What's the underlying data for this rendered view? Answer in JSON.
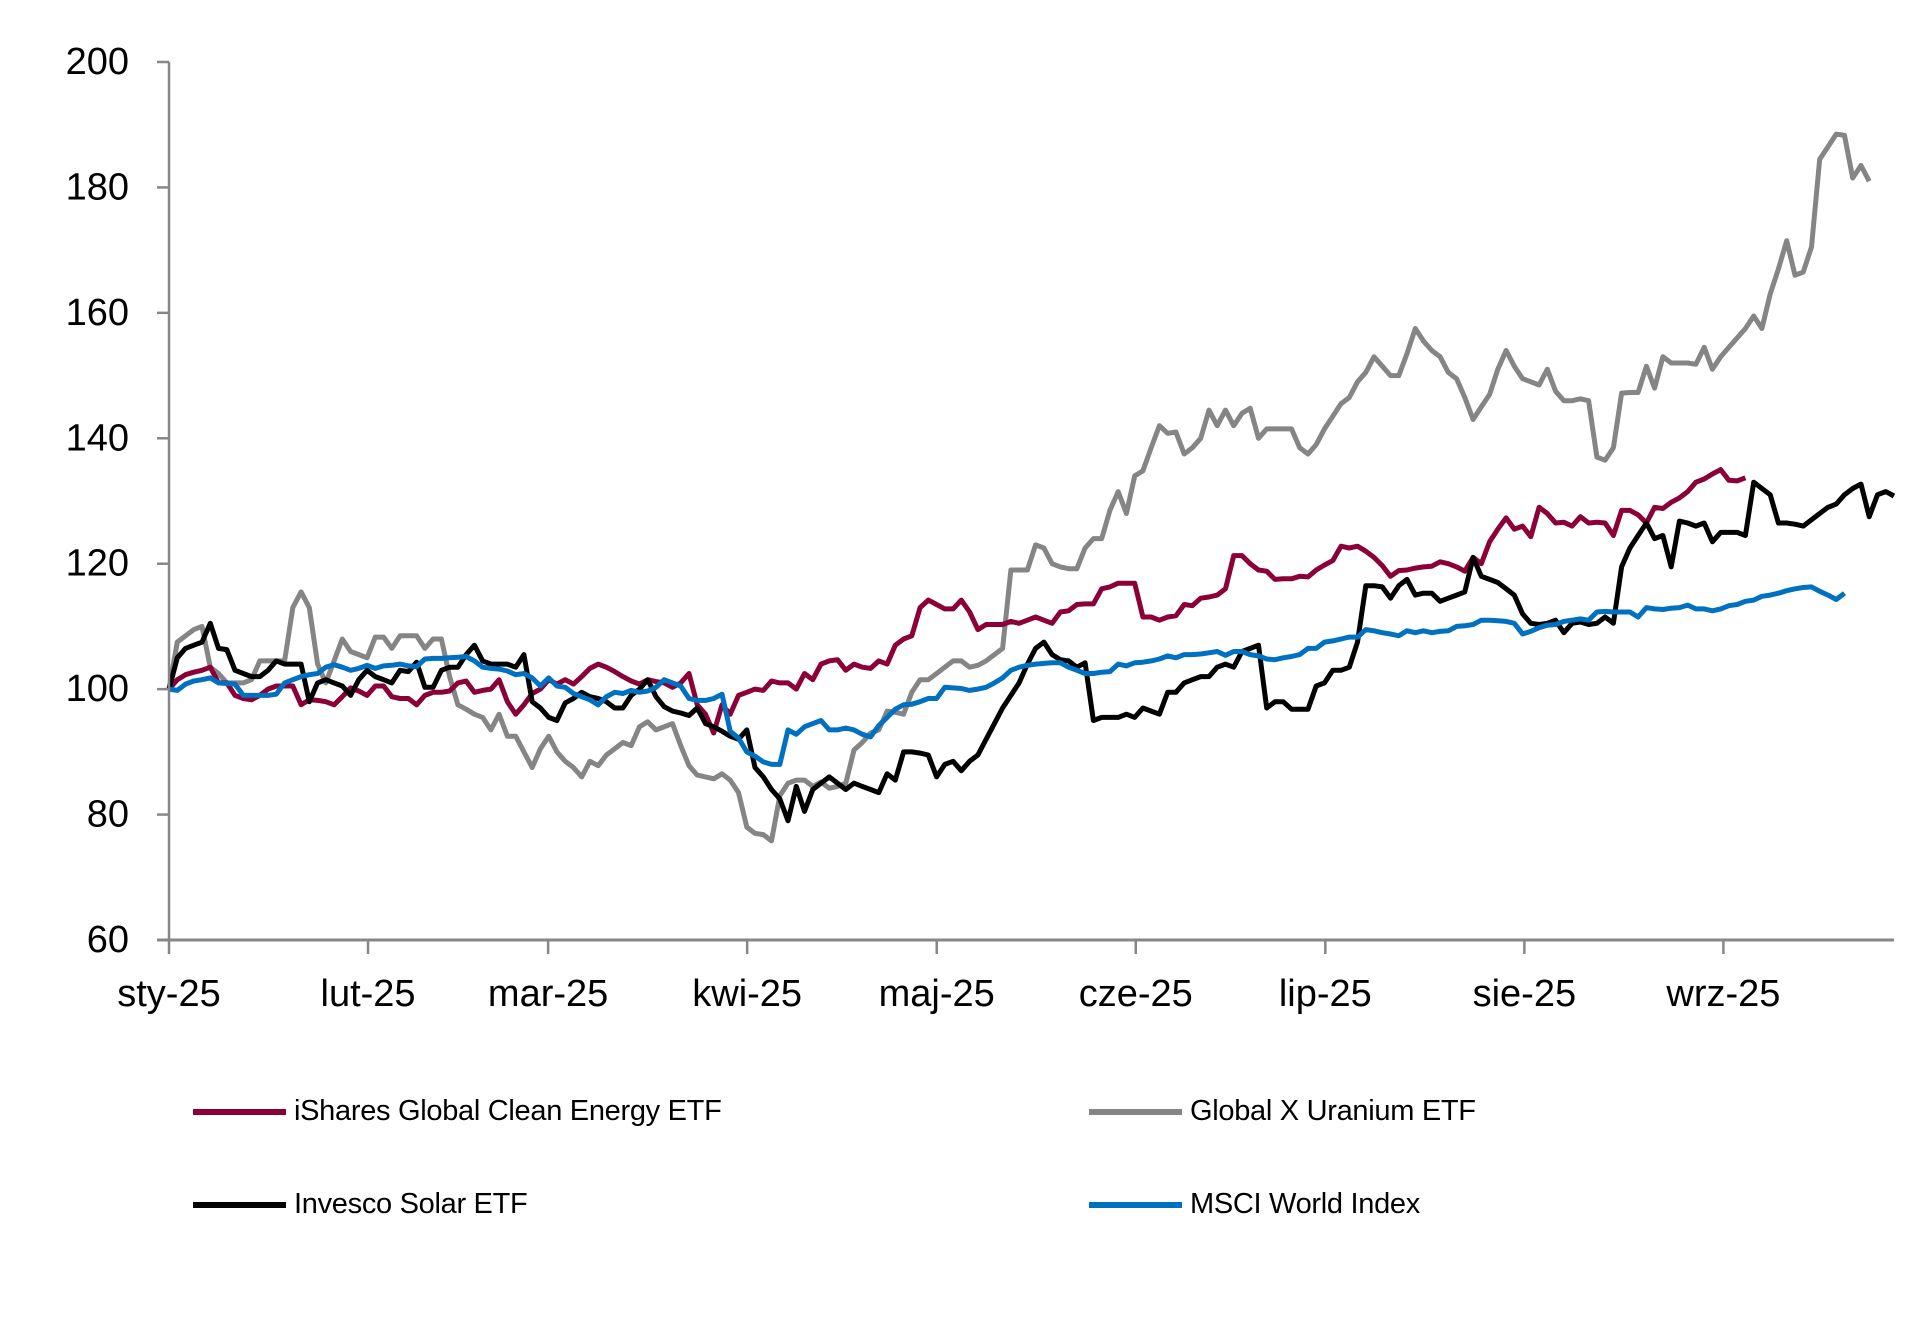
{
  "chart_data": {
    "type": "line",
    "title": "",
    "xlabel": "",
    "ylabel": "",
    "ylim": [
      60,
      200
    ],
    "yticks": [
      "60",
      "80",
      "100",
      "120",
      "140",
      "160",
      "180",
      "200"
    ],
    "ytick_values": [
      60,
      80,
      100,
      120,
      140,
      160,
      180,
      200
    ],
    "x_tick_labels": [
      "sty-25",
      "lut-25",
      "mar-25",
      "kwi-25",
      "maj-25",
      "cze-25",
      "lip-25",
      "sie-25",
      "wrz-25"
    ],
    "x_tick_positions": [
      0,
      21,
      40,
      61,
      81,
      102,
      122,
      143,
      164
    ],
    "x_range": [
      0,
      182
    ],
    "grid": false,
    "legend_position": "bottom",
    "series": [
      {
        "name": "iShares Global Clean Energy ETF",
        "color": "#8B0037",
        "values": [
          100,
          101.5,
          102.3,
          102.7,
          103,
          103.5,
          101,
          101,
          99,
          98.5,
          98.3,
          99,
          100,
          100.5,
          100.5,
          100.5,
          97.5,
          98.3,
          98.2,
          98,
          97.5,
          98.8,
          100.2,
          99.7,
          99,
          100.5,
          100.5,
          98.8,
          98.5,
          98.5,
          97.5,
          99,
          99.5,
          99.5,
          99.7,
          101,
          101.3,
          99.5,
          99.8,
          100,
          101.5,
          98,
          96,
          97.5,
          99.3,
          100,
          101.5,
          100.8,
          101.5,
          100.8,
          102,
          103.3,
          104,
          103.5,
          102.8,
          102,
          101.3,
          100.8,
          101.5,
          101.2,
          101,
          100.3,
          101,
          102.5,
          97.5,
          96,
          93,
          97.5,
          96,
          99,
          99.5,
          100,
          99.8,
          101.3,
          101,
          101,
          100,
          102.5,
          101.5,
          104,
          104.5,
          104.7,
          103,
          104,
          103.5,
          103.3,
          104.5,
          104,
          107,
          108,
          108.5,
          113,
          114.2,
          113.5,
          112.8,
          112.8,
          114.2,
          112.3,
          109.5,
          110.3,
          110.3,
          110.3,
          110.8,
          110.5,
          111,
          111.5,
          111,
          110.5,
          112.3,
          112.5,
          113.5,
          113.6,
          113.6,
          116,
          116.3,
          116.9,
          116.9,
          116.9,
          111.5,
          111.5,
          111,
          111.5,
          111.7,
          113.5,
          113.3,
          114.5,
          114.7,
          115,
          116,
          121.3,
          121.3,
          120,
          119,
          118.8,
          117.5,
          117.6,
          117.6,
          118,
          117.9,
          119,
          119.8,
          120.5,
          122.8,
          122.5,
          122.8,
          122,
          121,
          119.7,
          118,
          118.9,
          119,
          119.3,
          119.5,
          119.6,
          120.3,
          120,
          119.5,
          118.8,
          121,
          120,
          123.5,
          125.5,
          127.3,
          125.5,
          126,
          124.3,
          129,
          128,
          126.5,
          126.6,
          126,
          127.5,
          126.5,
          126.6,
          126.5,
          124.5,
          128.5,
          128.5,
          127.8,
          126.5,
          129,
          128.8,
          129.8,
          130.5,
          131.5,
          133,
          133.5,
          134.3,
          135,
          133.3,
          133.2,
          133.7
        ]
      },
      {
        "name": "Global X Uranium ETF",
        "color": "#858585",
        "values": [
          100,
          107.5,
          108.5,
          109.5,
          110,
          103.5,
          102.5,
          101,
          101,
          101,
          101.5,
          104.5,
          104.5,
          104.5,
          104.5,
          113,
          115.5,
          113,
          104,
          101,
          104.5,
          108,
          106,
          105.5,
          105,
          108.3,
          108.3,
          106.5,
          108.5,
          108.5,
          108.5,
          106.5,
          108,
          108,
          102,
          97.5,
          96.8,
          96,
          95.5,
          93.5,
          96,
          92.5,
          92.5,
          90,
          87.5,
          90.5,
          92.5,
          90,
          88.5,
          87.5,
          86,
          88.5,
          87.8,
          89.5,
          90.5,
          91.5,
          91,
          94,
          94.8,
          93.5,
          94,
          94.5,
          91,
          87.8,
          86.3,
          86,
          85.7,
          86.5,
          85.5,
          83.5,
          78,
          77,
          76.8,
          75.8,
          83,
          85,
          85.5,
          85.5,
          84.5,
          85.2,
          84.2,
          84.5,
          85,
          90.3,
          91.5,
          93,
          93.5,
          96.5,
          96.3,
          96,
          99.5,
          101.5,
          101.5,
          102.5,
          103.5,
          104.5,
          104.5,
          103.5,
          103.8,
          104.5,
          105.5,
          106.5,
          119,
          119,
          119,
          123,
          122.5,
          120,
          119.5,
          119.2,
          119.2,
          122.5,
          124,
          124,
          128.5,
          131.5,
          128,
          134,
          134.8,
          138.5,
          142,
          140.8,
          141,
          137.5,
          138.5,
          140,
          144.5,
          142,
          144.5,
          142,
          144,
          144.8,
          140,
          141.5,
          141.5,
          141.5,
          141.5,
          138.5,
          137.5,
          139,
          141.5,
          143.5,
          145.5,
          146.5,
          149,
          150.5,
          153,
          151.5,
          150,
          150,
          153.5,
          157.5,
          155.5,
          154,
          153,
          150.5,
          149.5,
          146.5,
          143,
          145,
          147,
          151,
          154,
          151.5,
          149.5,
          149,
          148.5,
          151,
          147.5,
          146,
          146,
          146.3,
          146,
          137,
          136.5,
          138.5,
          147.2,
          147.3,
          147.3,
          151.5,
          148,
          153,
          152,
          152,
          152,
          151.8,
          154.5,
          151,
          153,
          154.5,
          156,
          157.5,
          159.5,
          157.5,
          163,
          167,
          171.5,
          166,
          166.5,
          170.5,
          184.5,
          186.5,
          188.5,
          188.3,
          181.5,
          183.5,
          181
        ]
      },
      {
        "name": "Invesco Solar ETF",
        "color": "#000000",
        "values": [
          100,
          105,
          106.5,
          107,
          107.5,
          110.5,
          106.5,
          106.3,
          103,
          102.5,
          102,
          102,
          103,
          104.5,
          104,
          104,
          104,
          98,
          101,
          101.5,
          101,
          100.5,
          99,
          101.5,
          103,
          102,
          101.5,
          101,
          103,
          102.8,
          104.3,
          100.3,
          100.3,
          103,
          103.5,
          103.5,
          105.5,
          107,
          104.5,
          104,
          104,
          104,
          103.5,
          105.5,
          98,
          97,
          95.5,
          95,
          97.8,
          98.5,
          99.5,
          98.8,
          98.5,
          98,
          97,
          97,
          99,
          100,
          101.5,
          98.8,
          97.2,
          96.5,
          96.2,
          95.8,
          97,
          94.5,
          94,
          93.3,
          92.5,
          92,
          93.5,
          87.5,
          86,
          84,
          82.5,
          79,
          84.5,
          80.5,
          84,
          85,
          86,
          85,
          84,
          85,
          84.5,
          84,
          83.5,
          86.5,
          85.5,
          90,
          90,
          89.8,
          89.5,
          86,
          88,
          88.5,
          87,
          88.5,
          89.5,
          92,
          94.5,
          97,
          99,
          101,
          104,
          106.5,
          107.5,
          105.5,
          104.7,
          104.5,
          103.5,
          104.2,
          95,
          95.5,
          95.5,
          95.5,
          96,
          95.5,
          97,
          96.5,
          96,
          99.5,
          99.5,
          101,
          101.5,
          102,
          102,
          103.5,
          104,
          103.5,
          106,
          106.5,
          107,
          97,
          98,
          98,
          96.8,
          96.8,
          96.8,
          100.5,
          101,
          103,
          103,
          103.5,
          107.5,
          116.5,
          116.5,
          116.3,
          114.5,
          116.5,
          117.5,
          115,
          115.3,
          115.3,
          114,
          114.5,
          115,
          115.5,
          121,
          118,
          117.5,
          117,
          116,
          115,
          112,
          110.5,
          110.3,
          110.5,
          111,
          109,
          110.5,
          110.7,
          110.3,
          110.5,
          111.5,
          110.5,
          119.5,
          122.5,
          124.5,
          126.5,
          124,
          124.5,
          119.5,
          126.8,
          126.5,
          126,
          126.5,
          123.5,
          125,
          125,
          125,
          124.5,
          133,
          132,
          131,
          126.5,
          126.5,
          126.3,
          126,
          127,
          128,
          129,
          129.5,
          131,
          132,
          132.7,
          127.5,
          131,
          131.5,
          130.8
        ]
      },
      {
        "name": "MSCI World Index",
        "color": "#0070C0",
        "values": [
          100,
          99.8,
          100.8,
          101.3,
          101.5,
          101.8,
          101,
          100.9,
          100.8,
          99,
          99,
          99,
          99,
          99.2,
          101,
          101.5,
          102,
          102.3,
          102.5,
          103.5,
          103.9,
          103.5,
          103,
          103.3,
          103.8,
          103.3,
          103.7,
          103.8,
          104,
          103.7,
          103.6,
          104.8,
          104.9,
          104.9,
          105,
          105.1,
          105.2,
          104.5,
          103.5,
          103.3,
          103.2,
          102.9,
          102.3,
          102.5,
          101.8,
          100.5,
          101.8,
          100.5,
          100.3,
          99.3,
          98.8,
          98.3,
          97.5,
          98.8,
          99.5,
          99.3,
          99.8,
          99.5,
          99.7,
          100.3,
          101.5,
          101,
          100.5,
          98.5,
          98.2,
          98.2,
          98.5,
          99.2,
          93.3,
          92.2,
          90,
          89.3,
          88.4,
          88,
          88,
          93.5,
          92.8,
          94,
          94.5,
          95,
          93.5,
          93.5,
          93.8,
          93.5,
          92.8,
          92.4,
          94.2,
          95.5,
          96.8,
          97.5,
          97.6,
          98,
          98.5,
          98.5,
          100.3,
          100.2,
          100.1,
          99.8,
          100,
          100.3,
          101,
          101.8,
          103,
          103.5,
          103.8,
          104,
          104.1,
          104.2,
          104.2,
          103.5,
          103,
          102.5,
          102.5,
          102.7,
          102.8,
          104,
          103.7,
          104.2,
          104.3,
          104.5,
          104.8,
          105.3,
          105,
          105.5,
          105.5,
          105.6,
          105.8,
          106,
          105.4,
          106,
          106,
          105.5,
          105.3,
          104.8,
          104.7,
          105,
          105.2,
          105.5,
          106.5,
          106.5,
          107.5,
          107.7,
          108,
          108.3,
          108.3,
          109.5,
          109.3,
          109,
          108.8,
          108.5,
          109.3,
          109,
          109.3,
          109,
          109.2,
          109.3,
          110,
          110.1,
          110.3,
          111,
          111,
          110.9,
          110.8,
          110.5,
          108.8,
          109.2,
          109.8,
          110.2,
          110.3,
          110.8,
          111,
          111.2,
          111,
          112.3,
          112.4,
          112.3,
          112.3,
          112.3,
          111.5,
          113,
          112.8,
          112.7,
          112.9,
          113,
          113.4,
          112.8,
          112.8,
          112.5,
          112.8,
          113.3,
          113.5,
          114,
          114.2,
          114.8,
          115,
          115.3,
          115.7,
          116,
          116.2,
          116.3,
          115.6,
          115,
          114.3,
          115.3
        ]
      }
    ]
  }
}
